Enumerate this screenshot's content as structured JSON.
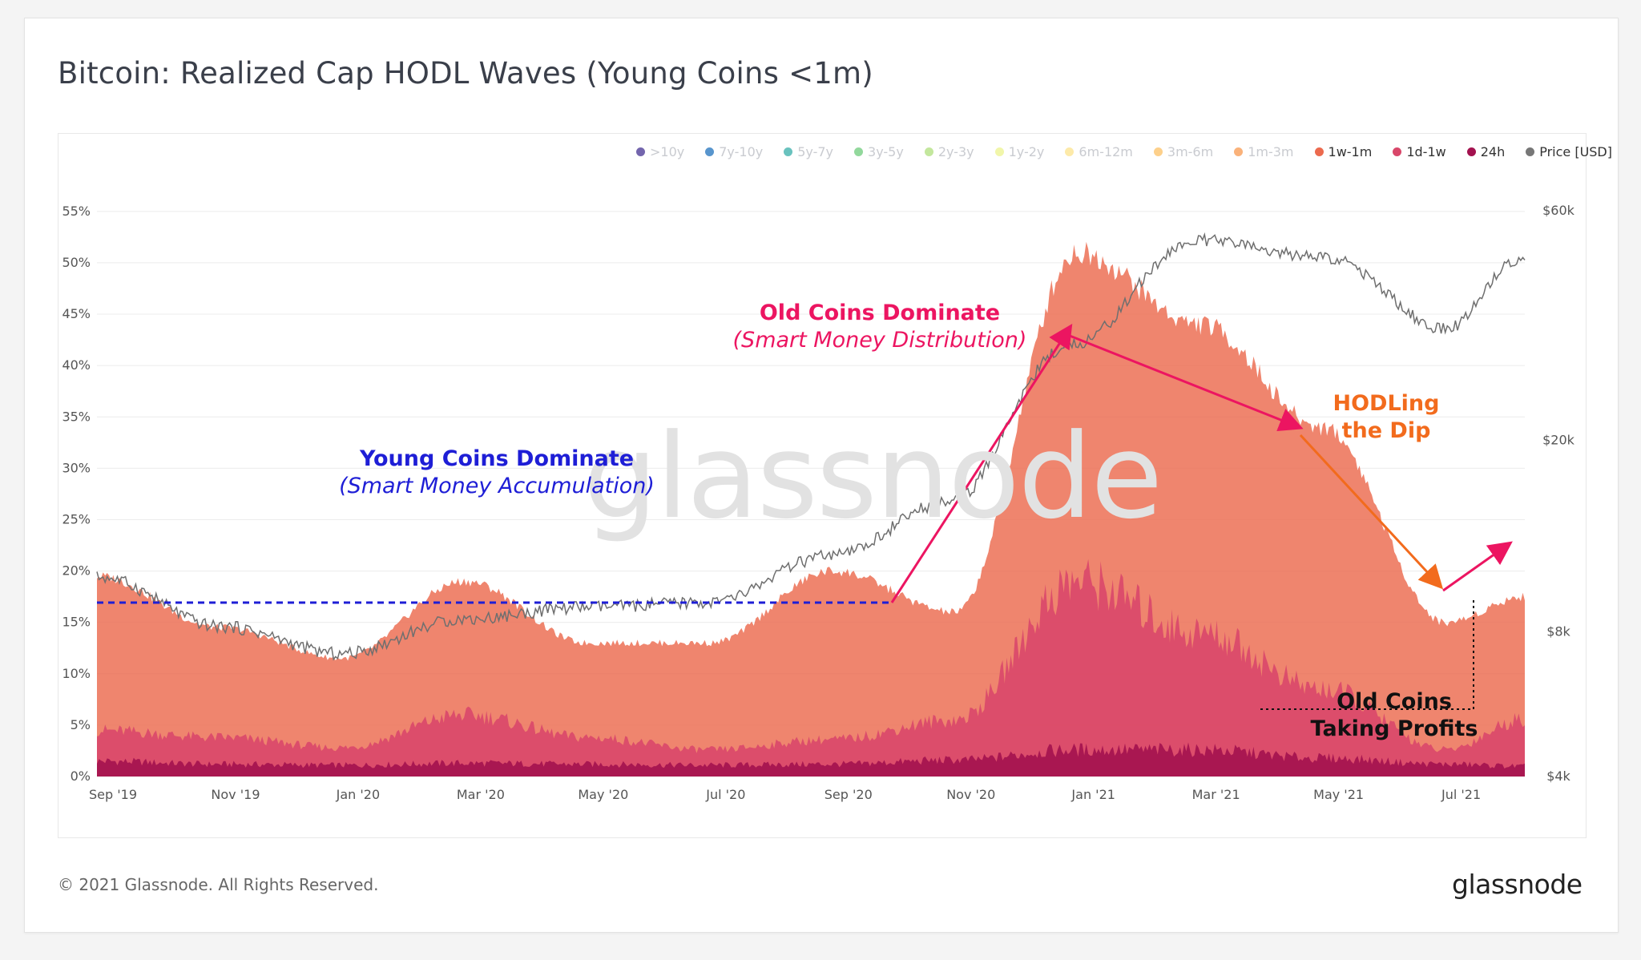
{
  "title": "Bitcoin: Realized Cap HODL Waves (Young Coins <1m)",
  "watermark": "glassnode",
  "footer": "© 2021 Glassnode. All Rights Reserved.",
  "brand": "glassnode",
  "legend": [
    {
      "label": ">10y",
      "color": "#5b4a9f",
      "active": false
    },
    {
      "label": "7y-10y",
      "color": "#3b82c4",
      "active": false
    },
    {
      "label": "5y-7y",
      "color": "#4fb7b3",
      "active": false
    },
    {
      "label": "3y-5y",
      "color": "#7fd18b",
      "active": false
    },
    {
      "label": "2y-3y",
      "color": "#b9e38c",
      "active": false
    },
    {
      "label": "1y-2y",
      "color": "#eef59b",
      "active": false
    },
    {
      "label": "6m-12m",
      "color": "#fde69a",
      "active": false
    },
    {
      "label": "3m-6m",
      "color": "#fdc877",
      "active": false
    },
    {
      "label": "1m-3m",
      "color": "#f9a463",
      "active": false
    },
    {
      "label": "1w-1m",
      "color": "#ec6a4e",
      "active": true
    },
    {
      "label": "1d-1w",
      "color": "#d9476a",
      "active": true
    },
    {
      "label": "24h",
      "color": "#a3124f",
      "active": true
    },
    {
      "label": "Price [USD]",
      "color": "#777777",
      "active": true
    }
  ],
  "annotations": {
    "young": {
      "bold": "Young Coins Dominate",
      "italic": "(Smart Money Accumulation)",
      "color": "#1e1ed6"
    },
    "old": {
      "bold": "Old Coins Dominate",
      "italic": "(Smart Money Distribution)",
      "color": "#ec1561"
    },
    "hodl": {
      "line1": "HODLing",
      "line2": "the Dip",
      "color": "#f26b1d"
    },
    "profits": {
      "line1": "Old Coins",
      "line2": "Taking Profits",
      "color": "#111111"
    }
  },
  "chart_data": {
    "type": "area",
    "x_labels": [
      "Sep '19",
      "Nov '19",
      "Jan '20",
      "Mar '20",
      "May '20",
      "Jul '20",
      "Sep '20",
      "Nov '20",
      "Jan '21",
      "Mar '21",
      "May '21",
      "Jul '21"
    ],
    "y_left_ticks": [
      "0%",
      "5%",
      "10%",
      "15%",
      "20%",
      "25%",
      "30%",
      "35%",
      "40%",
      "45%",
      "50%",
      "55%"
    ],
    "y_right_ticks": [
      "$4k",
      "$8k",
      "$20k",
      "$60k"
    ],
    "y_left_range": [
      0,
      56
    ],
    "y_right_scale": "log",
    "stacked": true,
    "x_months": [
      0,
      2,
      4,
      6,
      8,
      10,
      12,
      14,
      16,
      18,
      20,
      22,
      23.3
    ],
    "series": [
      {
        "name": "24h",
        "color": "#a3124f",
        "values": [
          1.5,
          1.2,
          1.1,
          1.3,
          1.2,
          1.1,
          1.2,
          1.6,
          2.6,
          2.6,
          1.8,
          1.2,
          1.0
        ]
      },
      {
        "name": "1d-1w",
        "color": "#d9476a",
        "values": [
          4.5,
          3.8,
          2.8,
          6.0,
          3.8,
          2.6,
          3.6,
          5.5,
          19.0,
          14.0,
          8.5,
          2.6,
          5.6
        ]
      },
      {
        "name": "1w-1m",
        "color": "#ec6a4e",
        "values": [
          19.5,
          14.5,
          11.5,
          19.0,
          13.0,
          13.0,
          20.0,
          16.0,
          51.0,
          44.0,
          34.0,
          15.0,
          17.5
        ]
      }
    ],
    "price_usd": [
      10400,
      8200,
      7200,
      8500,
      9000,
      9200,
      11500,
      15000,
      32000,
      52000,
      48000,
      34000,
      48000
    ]
  }
}
